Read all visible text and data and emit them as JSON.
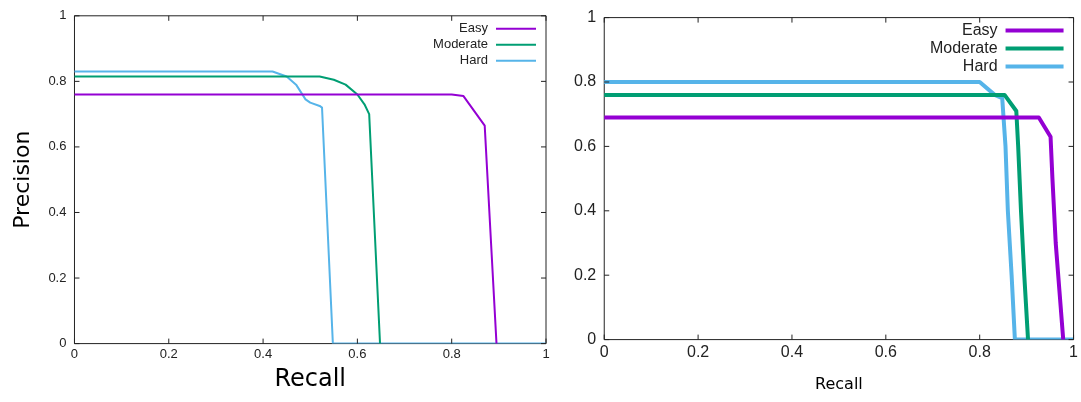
{
  "chart_data": [
    {
      "type": "line",
      "xlabel": "Recall",
      "ylabel": "Precision",
      "xlim": [
        0,
        1
      ],
      "ylim": [
        0,
        1
      ],
      "xticks": [
        0,
        0.2,
        0.4,
        0.6,
        0.8,
        1
      ],
      "yticks": [
        0,
        0.2,
        0.4,
        0.6,
        0.8,
        1
      ],
      "legend": "top right",
      "series": [
        {
          "name": "Easy",
          "color": "#9400d3",
          "x": [
            0,
            0.8,
            0.825,
            0.87,
            0.895
          ],
          "values": [
            0.76,
            0.76,
            0.755,
            0.665,
            0
          ]
        },
        {
          "name": "Moderate",
          "color": "#009e73",
          "x": [
            0,
            0.52,
            0.55,
            0.575,
            0.6,
            0.615,
            0.625,
            0.648
          ],
          "values": [
            0.815,
            0.815,
            0.805,
            0.79,
            0.76,
            0.73,
            0.7,
            0
          ]
        },
        {
          "name": "Hard",
          "color": "#56b4e9",
          "x": [
            0,
            0.42,
            0.45,
            0.47,
            0.49,
            0.5,
            0.52,
            0.525,
            0.548,
            1
          ],
          "values": [
            0.83,
            0.83,
            0.815,
            0.79,
            0.745,
            0.735,
            0.725,
            0.72,
            0,
            0
          ]
        }
      ]
    },
    {
      "type": "line",
      "xlabel": "Recall",
      "xlim": [
        0,
        1
      ],
      "ylim": [
        0,
        1
      ],
      "xticks": [
        0,
        0.2,
        0.4,
        0.6,
        0.8,
        1
      ],
      "yticks": [
        0,
        0.2,
        0.4,
        0.6,
        0.8,
        1
      ],
      "legend": "top right",
      "series": [
        {
          "name": "Easy",
          "color": "#9400d3",
          "x": [
            0,
            0.926,
            0.951,
            0.955,
            0.962,
            0.97,
            0.978
          ],
          "values": [
            0.69,
            0.69,
            0.63,
            0.5,
            0.3,
            0.15,
            0
          ]
        },
        {
          "name": "Moderate",
          "color": "#009e73",
          "x": [
            0,
            0.853,
            0.878,
            0.882,
            0.888,
            0.895,
            0.903
          ],
          "values": [
            0.76,
            0.76,
            0.71,
            0.6,
            0.4,
            0.2,
            0
          ]
        },
        {
          "name": "Hard",
          "color": "#56b4e9",
          "x": [
            0,
            0.8,
            0.832,
            0.848,
            0.855,
            0.86,
            0.868,
            0.875,
            1
          ],
          "values": [
            0.8,
            0.8,
            0.76,
            0.75,
            0.6,
            0.4,
            0.2,
            0,
            0
          ]
        }
      ]
    }
  ]
}
